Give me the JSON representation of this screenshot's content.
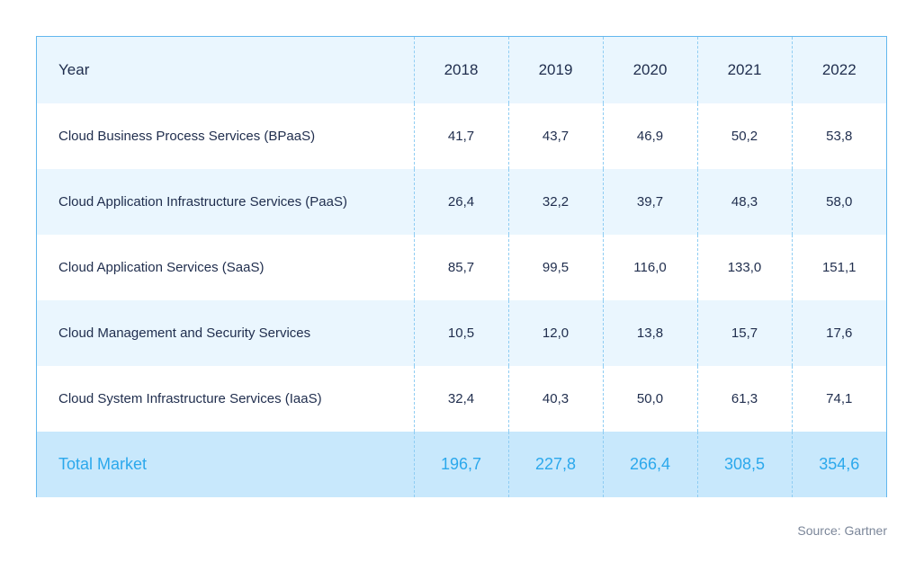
{
  "chart_data": {
    "type": "table",
    "columns": [
      "Year",
      "2018",
      "2019",
      "2020",
      "2021",
      "2022"
    ],
    "rows": [
      {
        "label": "Cloud Business Process Services (BPaaS)",
        "values": [
          "41,7",
          "43,7",
          "46,9",
          "50,2",
          "53,8"
        ]
      },
      {
        "label": "Cloud Application Infrastructure Services (PaaS)",
        "values": [
          "26,4",
          "32,2",
          "39,7",
          "48,3",
          "58,0"
        ]
      },
      {
        "label": "Cloud Application Services (SaaS)",
        "values": [
          "85,7",
          "99,5",
          "116,0",
          "133,0",
          "151,1"
        ]
      },
      {
        "label": "Cloud Management and Security Services",
        "values": [
          "10,5",
          "12,0",
          "13,8",
          "15,7",
          "17,6"
        ]
      },
      {
        "label": "Cloud System Infrastructure Services (IaaS)",
        "values": [
          "32,4",
          "40,3",
          "50,0",
          "61,3",
          "74,1"
        ]
      }
    ],
    "total": {
      "label": "Total Market",
      "values": [
        "196,7",
        "227,8",
        "266,4",
        "308,5",
        "354,6"
      ]
    },
    "source": "Source: Gartner"
  },
  "colors": {
    "border": "#63b7ee",
    "header_bg": "#eaf6fe",
    "total_bg": "#c8e8fc",
    "accent_text": "#2ba8ec",
    "body_text": "#1f2d4d"
  }
}
